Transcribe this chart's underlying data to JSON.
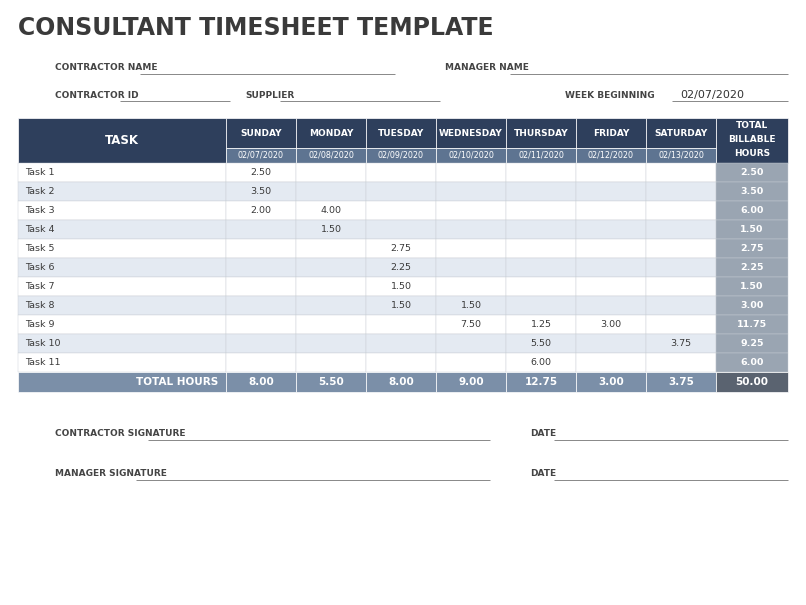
{
  "title": "CONSULTANT TIMESHEET TEMPLATE",
  "fields": {
    "contractor_name": "CONTRACTOR NAME",
    "manager_name": "MANAGER NAME",
    "contractor_id": "CONTRACTOR ID",
    "supplier": "SUPPLIER",
    "week_beginning": "WEEK BEGINNING",
    "week_date": "02/07/2020",
    "contractor_signature": "CONTRACTOR SIGNATURE",
    "manager_signature": "MANAGER SIGNATURE",
    "date": "DATE"
  },
  "header_bg": "#2E3F5C",
  "header_text": "#FFFFFF",
  "subheader_bg": "#5E7491",
  "row_odd_bg": "#FFFFFF",
  "row_even_bg": "#E4EAF2",
  "total_row_bg": "#7B8FA8",
  "total_col_bg": "#9AA5B2",
  "grand_total_bg": "#5A6370",
  "border_color": "#C8CDD4",
  "days": [
    "SUNDAY",
    "MONDAY",
    "TUESDAY",
    "WEDNESDAY",
    "THURSDAY",
    "FRIDAY",
    "SATURDAY"
  ],
  "dates": [
    "02/07/2020",
    "02/08/2020",
    "02/09/2020",
    "02/10/2020",
    "02/11/2020",
    "02/12/2020",
    "02/13/2020"
  ],
  "tasks": [
    "Task 1",
    "Task 2",
    "Task 3",
    "Task 4",
    "Task 5",
    "Task 6",
    "Task 7",
    "Task 8",
    "Task 9",
    "Task 10",
    "Task 11"
  ],
  "data": [
    [
      2.5,
      null,
      null,
      null,
      null,
      null,
      null
    ],
    [
      3.5,
      null,
      null,
      null,
      null,
      null,
      null
    ],
    [
      2.0,
      4.0,
      null,
      null,
      null,
      null,
      null
    ],
    [
      null,
      1.5,
      null,
      null,
      null,
      null,
      null
    ],
    [
      null,
      null,
      2.75,
      null,
      null,
      null,
      null
    ],
    [
      null,
      null,
      2.25,
      null,
      null,
      null,
      null
    ],
    [
      null,
      null,
      1.5,
      null,
      null,
      null,
      null
    ],
    [
      null,
      null,
      1.5,
      1.5,
      null,
      null,
      null
    ],
    [
      null,
      null,
      null,
      7.5,
      1.25,
      3.0,
      null
    ],
    [
      null,
      null,
      null,
      null,
      5.5,
      null,
      3.75
    ],
    [
      null,
      null,
      null,
      null,
      6.0,
      null,
      null
    ]
  ],
  "row_totals": [
    2.5,
    3.5,
    6.0,
    1.5,
    2.75,
    2.25,
    1.5,
    3.0,
    11.75,
    9.25,
    6.0
  ],
  "col_totals": [
    8.0,
    5.5,
    8.0,
    9.0,
    12.75,
    3.0,
    3.75
  ],
  "grand_total": 50.0
}
